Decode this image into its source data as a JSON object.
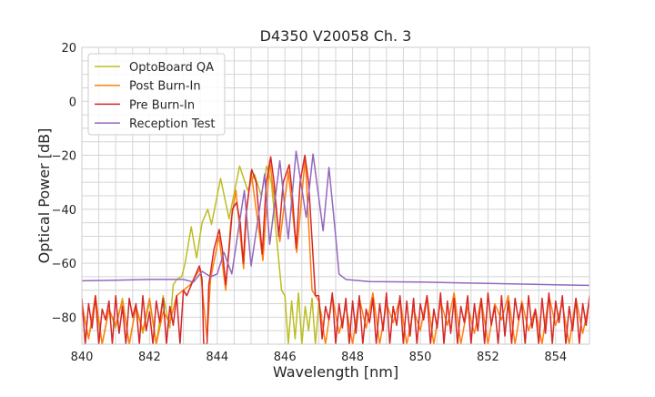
{
  "chart_data": {
    "type": "line",
    "title": "D4350 V20058 Ch. 3",
    "xlabel": "Wavelength [nm]",
    "ylabel": "Optical Power [dB]",
    "xlim": [
      840,
      855
    ],
    "ylim": [
      -90,
      20
    ],
    "xticks": [
      840,
      842,
      844,
      846,
      848,
      850,
      852,
      854
    ],
    "yticks": [
      -80,
      -60,
      -40,
      -20,
      0,
      20
    ],
    "xtick_labels": [
      "840",
      "842",
      "844",
      "846",
      "848",
      "850",
      "852",
      "854"
    ],
    "ytick_labels": [
      "−80",
      "−60",
      "−40",
      "−20",
      "0",
      "20"
    ],
    "grid": true,
    "legend_position": "top-left",
    "series": [
      {
        "name": "OptoBoard QA",
        "color": "#bcbd22",
        "points": [
          [
            840,
            -75
          ],
          [
            840.2,
            -88
          ],
          [
            840.4,
            -74
          ],
          [
            840.6,
            -90
          ],
          [
            840.8,
            -77
          ],
          [
            841,
            -84
          ],
          [
            841.2,
            -73
          ],
          [
            841.4,
            -90
          ],
          [
            841.6,
            -76
          ],
          [
            841.8,
            -86
          ],
          [
            842,
            -74
          ],
          [
            842.2,
            -90
          ],
          [
            842.4,
            -72
          ],
          [
            842.6,
            -84
          ],
          [
            842.7,
            -68
          ],
          [
            842.8,
            -66
          ],
          [
            842.95,
            -65
          ],
          [
            843.05,
            -60
          ],
          [
            843.23,
            -46.5
          ],
          [
            843.39,
            -58
          ],
          [
            843.55,
            -45
          ],
          [
            843.72,
            -40
          ],
          [
            843.83,
            -45.6
          ],
          [
            844.1,
            -28.6
          ],
          [
            844.35,
            -43.5
          ],
          [
            844.66,
            -24
          ],
          [
            844.9,
            -33
          ],
          [
            845.1,
            -27
          ],
          [
            845.3,
            -35
          ],
          [
            845.46,
            -24
          ],
          [
            845.6,
            -30
          ],
          [
            845.75,
            -50
          ],
          [
            845.9,
            -70
          ],
          [
            846.0,
            -72
          ],
          [
            846.1,
            -90
          ],
          [
            846.2,
            -74
          ],
          [
            846.3,
            -88
          ],
          [
            846.4,
            -71
          ],
          [
            846.5,
            -90
          ],
          [
            846.6,
            -76
          ],
          [
            846.7,
            -85
          ],
          [
            846.8,
            -73
          ],
          [
            846.9,
            -90
          ],
          [
            847.0,
            -75
          ],
          [
            847.1,
            -80
          ]
        ]
      },
      {
        "name": "Post Burn-In",
        "color": "#ff7f0e",
        "points": [
          [
            840,
            -75
          ],
          [
            840.2,
            -88
          ],
          [
            840.4,
            -72
          ],
          [
            840.6,
            -90
          ],
          [
            840.8,
            -77
          ],
          [
            841,
            -83
          ],
          [
            841.2,
            -74
          ],
          [
            841.4,
            -90
          ],
          [
            841.6,
            -76
          ],
          [
            841.8,
            -85
          ],
          [
            842,
            -73
          ],
          [
            842.2,
            -90
          ],
          [
            842.4,
            -78
          ],
          [
            842.6,
            -82
          ],
          [
            842.8,
            -72
          ],
          [
            843,
            -70
          ],
          [
            843.2,
            -68
          ],
          [
            843.5,
            -62
          ],
          [
            843.6,
            -75
          ],
          [
            843.7,
            -88
          ],
          [
            843.8,
            -66
          ],
          [
            844.05,
            -50
          ],
          [
            844.25,
            -70
          ],
          [
            844.4,
            -45
          ],
          [
            844.55,
            -33
          ],
          [
            844.78,
            -62
          ],
          [
            844.87,
            -40
          ],
          [
            845.0,
            -26
          ],
          [
            845.35,
            -59
          ],
          [
            845.55,
            -22
          ],
          [
            845.85,
            -52
          ],
          [
            846.1,
            -26
          ],
          [
            846.35,
            -56
          ],
          [
            846.6,
            -21
          ],
          [
            846.8,
            -70
          ],
          [
            847,
            -74
          ],
          [
            847.2,
            -90
          ],
          [
            847.4,
            -72
          ],
          [
            847.6,
            -86
          ],
          [
            847.8,
            -76
          ],
          [
            848,
            -90
          ],
          [
            848.2,
            -73
          ],
          [
            848.4,
            -84
          ],
          [
            848.6,
            -71
          ],
          [
            848.8,
            -90
          ],
          [
            849,
            -75
          ],
          [
            849.2,
            -82
          ],
          [
            849.4,
            -73
          ],
          [
            849.6,
            -90
          ],
          [
            849.8,
            -77
          ],
          [
            850,
            -85
          ],
          [
            850.2,
            -72
          ],
          [
            850.4,
            -90
          ],
          [
            850.6,
            -74
          ],
          [
            850.8,
            -83
          ],
          [
            851,
            -71
          ],
          [
            851.2,
            -90
          ],
          [
            851.4,
            -76
          ],
          [
            851.6,
            -86
          ],
          [
            851.8,
            -73
          ],
          [
            852,
            -90
          ],
          [
            852.2,
            -75
          ],
          [
            852.4,
            -81
          ],
          [
            852.6,
            -72
          ],
          [
            852.8,
            -90
          ],
          [
            853,
            -74
          ],
          [
            853.2,
            -85
          ],
          [
            853.4,
            -77
          ],
          [
            853.6,
            -90
          ],
          [
            853.8,
            -72
          ],
          [
            854,
            -83
          ],
          [
            854.2,
            -75
          ],
          [
            854.4,
            -90
          ],
          [
            854.6,
            -73
          ],
          [
            854.8,
            -86
          ],
          [
            855,
            -74
          ]
        ]
      },
      {
        "name": "Pre Burn-In",
        "color": "#d62728",
        "points": [
          [
            840,
            -73
          ],
          [
            840.1,
            -90
          ],
          [
            840.2,
            -75
          ],
          [
            840.3,
            -84
          ],
          [
            840.4,
            -72
          ],
          [
            840.5,
            -90
          ],
          [
            840.6,
            -77
          ],
          [
            840.7,
            -81
          ],
          [
            840.8,
            -74
          ],
          [
            840.9,
            -90
          ],
          [
            841,
            -72
          ],
          [
            841.1,
            -86
          ],
          [
            841.2,
            -76
          ],
          [
            841.3,
            -90
          ],
          [
            841.4,
            -73
          ],
          [
            841.5,
            -80
          ],
          [
            841.6,
            -75
          ],
          [
            841.7,
            -90
          ],
          [
            841.8,
            -72
          ],
          [
            841.9,
            -85
          ],
          [
            842,
            -78
          ],
          [
            842.1,
            -90
          ],
          [
            842.2,
            -74
          ],
          [
            842.3,
            -82
          ],
          [
            842.4,
            -73
          ],
          [
            842.5,
            -90
          ],
          [
            842.6,
            -76
          ],
          [
            842.7,
            -83
          ],
          [
            842.8,
            -72
          ],
          [
            842.9,
            -90
          ],
          [
            843,
            -70
          ],
          [
            843.1,
            -72
          ],
          [
            843.3,
            -66
          ],
          [
            843.47,
            -61
          ],
          [
            843.55,
            -66
          ],
          [
            843.6,
            -90
          ],
          [
            843.7,
            -90
          ],
          [
            843.75,
            -68
          ],
          [
            843.9,
            -55
          ],
          [
            844.06,
            -47.5
          ],
          [
            844.15,
            -55
          ],
          [
            844.25,
            -68
          ],
          [
            844.35,
            -55
          ],
          [
            844.45,
            -40
          ],
          [
            844.57,
            -37.5
          ],
          [
            844.68,
            -45
          ],
          [
            844.77,
            -60
          ],
          [
            844.85,
            -42
          ],
          [
            845.02,
            -25.3
          ],
          [
            845.15,
            -30
          ],
          [
            845.33,
            -56.6
          ],
          [
            845.45,
            -30
          ],
          [
            845.58,
            -20.6
          ],
          [
            845.68,
            -30
          ],
          [
            845.82,
            -50
          ],
          [
            845.95,
            -30
          ],
          [
            846.13,
            -23.5
          ],
          [
            846.22,
            -35
          ],
          [
            846.33,
            -54.5
          ],
          [
            846.45,
            -30
          ],
          [
            846.59,
            -20
          ],
          [
            846.7,
            -30
          ],
          [
            846.9,
            -72
          ],
          [
            847,
            -72
          ],
          [
            847.1,
            -88
          ],
          [
            847.2,
            -76
          ],
          [
            847.3,
            -81
          ],
          [
            847.4,
            -71
          ],
          [
            847.5,
            -90
          ],
          [
            847.6,
            -75
          ],
          [
            847.7,
            -84
          ],
          [
            847.8,
            -73
          ],
          [
            847.9,
            -90
          ],
          [
            848,
            -74
          ],
          [
            848.1,
            -86
          ],
          [
            848.2,
            -72
          ],
          [
            848.3,
            -90
          ],
          [
            848.4,
            -77
          ],
          [
            848.5,
            -82
          ],
          [
            848.6,
            -73
          ],
          [
            848.7,
            -90
          ],
          [
            848.8,
            -75
          ],
          [
            848.9,
            -85
          ],
          [
            849,
            -71
          ],
          [
            849.1,
            -90
          ],
          [
            849.2,
            -76
          ],
          [
            849.3,
            -83
          ],
          [
            849.4,
            -72
          ],
          [
            849.5,
            -90
          ],
          [
            849.6,
            -74
          ],
          [
            849.7,
            -87
          ],
          [
            849.8,
            -73
          ],
          [
            849.9,
            -90
          ],
          [
            850,
            -75
          ],
          [
            850.1,
            -81
          ],
          [
            850.2,
            -72
          ],
          [
            850.3,
            -90
          ],
          [
            850.4,
            -77
          ],
          [
            850.5,
            -84
          ],
          [
            850.6,
            -71
          ],
          [
            850.7,
            -90
          ],
          [
            850.8,
            -74
          ],
          [
            850.9,
            -86
          ],
          [
            851,
            -73
          ],
          [
            851.1,
            -90
          ],
          [
            851.2,
            -76
          ],
          [
            851.3,
            -82
          ],
          [
            851.4,
            -72
          ],
          [
            851.5,
            -90
          ],
          [
            851.6,
            -75
          ],
          [
            851.7,
            -85
          ],
          [
            851.8,
            -73
          ],
          [
            851.9,
            -90
          ],
          [
            852,
            -71
          ],
          [
            852.1,
            -83
          ],
          [
            852.2,
            -76
          ],
          [
            852.3,
            -90
          ],
          [
            852.4,
            -72
          ],
          [
            852.5,
            -87
          ],
          [
            852.6,
            -74
          ],
          [
            852.7,
            -90
          ],
          [
            852.8,
            -73
          ],
          [
            852.9,
            -81
          ],
          [
            853,
            -75
          ],
          [
            853.1,
            -90
          ],
          [
            853.2,
            -72
          ],
          [
            853.3,
            -84
          ],
          [
            853.4,
            -77
          ],
          [
            853.5,
            -90
          ],
          [
            853.6,
            -73
          ],
          [
            853.7,
            -86
          ],
          [
            853.8,
            -71
          ],
          [
            853.9,
            -90
          ],
          [
            854,
            -74
          ],
          [
            854.1,
            -82
          ],
          [
            854.2,
            -72
          ],
          [
            854.3,
            -90
          ],
          [
            854.4,
            -76
          ],
          [
            854.5,
            -85
          ],
          [
            854.6,
            -73
          ],
          [
            854.7,
            -90
          ],
          [
            854.8,
            -75
          ],
          [
            854.9,
            -83
          ],
          [
            855,
            -72
          ]
        ]
      },
      {
        "name": "Reception Test",
        "color": "#9467bd",
        "points": [
          [
            840,
            -66.5
          ],
          [
            841,
            -66.3
          ],
          [
            842,
            -66
          ],
          [
            843,
            -66
          ],
          [
            843.3,
            -67
          ],
          [
            843.55,
            -63
          ],
          [
            843.8,
            -65
          ],
          [
            844.0,
            -64
          ],
          [
            844.2,
            -56
          ],
          [
            844.43,
            -64
          ],
          [
            844.8,
            -33
          ],
          [
            845.0,
            -61
          ],
          [
            845.4,
            -27
          ],
          [
            845.55,
            -53
          ],
          [
            845.85,
            -22
          ],
          [
            846.1,
            -51
          ],
          [
            846.33,
            -18.5
          ],
          [
            846.63,
            -43
          ],
          [
            846.83,
            -19.5
          ],
          [
            847.13,
            -48
          ],
          [
            847.3,
            -24.5
          ],
          [
            847.5,
            -50
          ],
          [
            847.6,
            -64
          ],
          [
            847.8,
            -66
          ],
          [
            848.5,
            -66.8
          ],
          [
            850,
            -67
          ],
          [
            852,
            -67.5
          ],
          [
            854,
            -68
          ],
          [
            855,
            -68.2
          ]
        ]
      }
    ]
  }
}
